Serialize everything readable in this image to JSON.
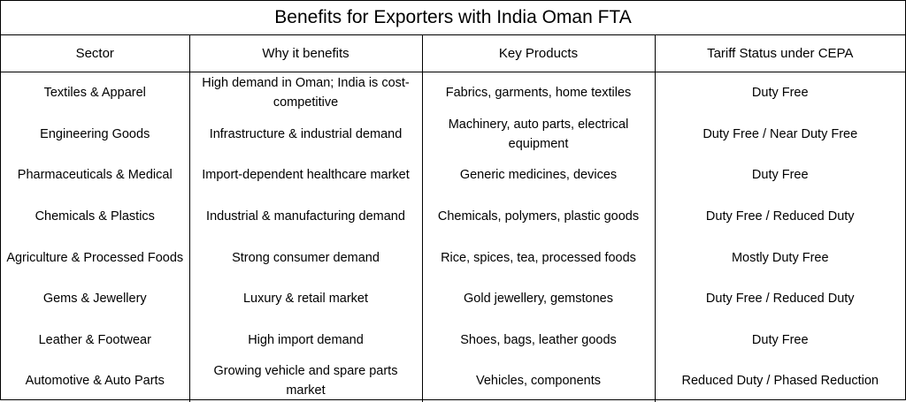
{
  "title": "Benefits for Exporters with India Oman FTA",
  "headers": [
    "Sector",
    "Why it benefits",
    "Key Products",
    "Tariff Status under CEPA"
  ],
  "rows": [
    [
      "Textiles & Apparel",
      "High demand in Oman; India is cost-competitive",
      "Fabrics, garments, home textiles",
      "Duty Free"
    ],
    [
      "Engineering Goods",
      "Infrastructure & industrial demand",
      "Machinery, auto parts, electrical equipment",
      "Duty Free / Near Duty Free"
    ],
    [
      "Pharmaceuticals & Medical",
      "Import-dependent healthcare market",
      "Generic medicines, devices",
      "Duty Free"
    ],
    [
      "Chemicals & Plastics",
      "Industrial & manufacturing demand",
      "Chemicals, polymers, plastic goods",
      "Duty Free / Reduced Duty"
    ],
    [
      "Agriculture & Processed Foods",
      "Strong consumer demand",
      "Rice, spices, tea, processed foods",
      "Mostly Duty Free"
    ],
    [
      "Gems & Jewellery",
      "Luxury & retail market",
      "Gold jewellery, gemstones",
      "Duty Free / Reduced Duty"
    ],
    [
      "Leather & Footwear",
      "High import demand",
      "Shoes, bags, leather goods",
      "Duty Free"
    ],
    [
      "Automotive & Auto Parts",
      "Growing vehicle and spare parts market",
      "Vehicles, components",
      "Reduced Duty / Phased Reduction"
    ]
  ]
}
